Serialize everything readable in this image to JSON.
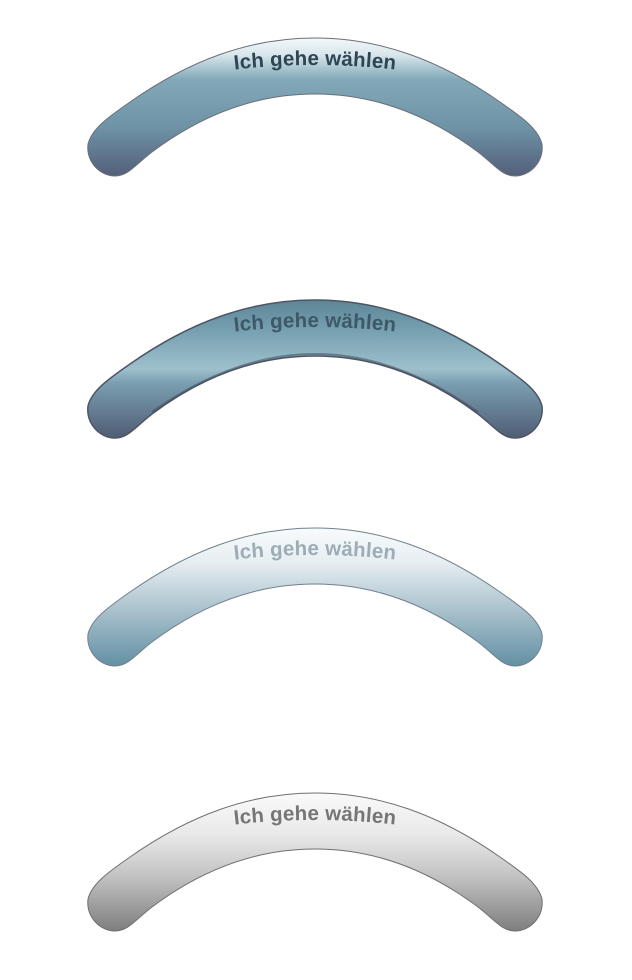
{
  "buttons": [
    {
      "state": "normal",
      "label": "Ich gehe wählen",
      "colors": {
        "top": "#eef4f7",
        "mid": "#7ea4b3",
        "bottom": "#5b6a82",
        "text": "#2b4452"
      }
    },
    {
      "state": "pressed",
      "label": "Ich gehe wählen",
      "colors": {
        "top": "#628c9d",
        "mid": "#79a3b3",
        "bottom": "#58667d",
        "text": "#3a5562"
      }
    },
    {
      "state": "hover",
      "label": "Ich gehe wählen",
      "colors": {
        "top": "#f5f9fb",
        "mid": "#b6cbd5",
        "bottom": "#6b96a8",
        "text": "#9aaab3"
      }
    },
    {
      "state": "disabled",
      "label": "Ich gehe wählen",
      "colors": {
        "top": "#f7f7f7",
        "mid": "#cccccc",
        "bottom": "#838383",
        "text": "#737373"
      }
    }
  ]
}
